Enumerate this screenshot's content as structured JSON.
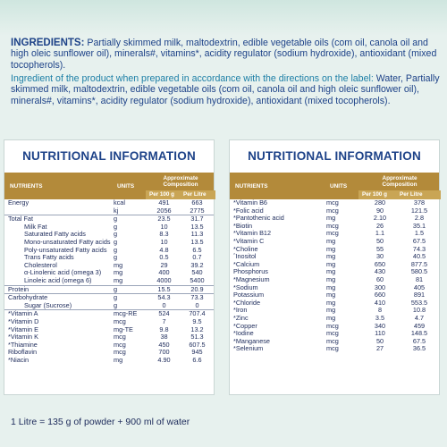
{
  "ingredients": {
    "label": "INGREDIENTS:",
    "text": "Partially skimmed milk, maltodextrin, edible vegetable oils (com oil, canola oil and high oleic sunflower oil), minerals#, vitamins*, acidity regulator (sodium hydroxide), antioxidant (mixed tocopherols).",
    "prepared_lead": "Ingredient of the product when prepared in accordance with the directions on the label:",
    "prepared_text": "Water, Partially skimmed milk, maltodextrin, edible vegetable oils (com oil, canola oil and high oleic sunflower oil), minerals#, vitamins*, acidity regulator (sodium hydroxide), antioxidant (mixed tocopherols)."
  },
  "panel_title": "NUTRITIONAL INFORMATION",
  "headers": {
    "nutrients": "NUTRIENTS",
    "units": "UNITS",
    "approx_line1": "Approximate",
    "approx_line2": "Composition",
    "per100": "Per 100 g",
    "perlitre": "Per Litre"
  },
  "left_rows": [
    {
      "name": "Energy",
      "unit": "kcal",
      "p100": "491",
      "pl": "663",
      "ind": false,
      "rule": false
    },
    {
      "name": "",
      "unit": "kj",
      "p100": "2056",
      "pl": "2775",
      "ind": false,
      "rule": false
    },
    {
      "name": "Total Fat",
      "unit": "g",
      "p100": "23.5",
      "pl": "31.7",
      "ind": false,
      "rule": true
    },
    {
      "name": "Milk Fat",
      "unit": "g",
      "p100": "10",
      "pl": "13.5",
      "ind": true,
      "rule": false
    },
    {
      "name": "Saturated Fatty acids",
      "unit": "g",
      "p100": "8.3",
      "pl": "11.3",
      "ind": true,
      "rule": false
    },
    {
      "name": "Mono-unsaturated Fatty acids",
      "unit": "g",
      "p100": "10",
      "pl": "13.5",
      "ind": true,
      "rule": false
    },
    {
      "name": "Poly-unsaturated Fatty acids",
      "unit": "g",
      "p100": "4.8",
      "pl": "6.5",
      "ind": true,
      "rule": false
    },
    {
      "name": "Trans Fatty acids",
      "unit": "g",
      "p100": "0.5",
      "pl": "0.7",
      "ind": true,
      "rule": false
    },
    {
      "name": "Cholesterol",
      "unit": "mg",
      "p100": "29",
      "pl": "39.2",
      "ind": true,
      "rule": false
    },
    {
      "name": "α-Linolenic acid (omega 3)",
      "unit": "mg",
      "p100": "400",
      "pl": "540",
      "ind": true,
      "rule": false
    },
    {
      "name": "Linoleic acid (omega 6)",
      "unit": "mg",
      "p100": "4000",
      "pl": "5400",
      "ind": true,
      "rule": false
    },
    {
      "name": "Protein",
      "unit": "g",
      "p100": "15.5",
      "pl": "20.9",
      "ind": false,
      "rule": true
    },
    {
      "name": "Carbohydrate",
      "unit": "g",
      "p100": "54.3",
      "pl": "73.3",
      "ind": false,
      "rule": true
    },
    {
      "name": "Sugar (Sucrose)",
      "unit": "g",
      "p100": "0",
      "pl": "0",
      "ind": true,
      "rule": false
    },
    {
      "name": "*Vitamin A",
      "unit": "mcg-RE",
      "p100": "524",
      "pl": "707.4",
      "ind": false,
      "rule": true
    },
    {
      "name": "*Vitamin D",
      "unit": "mcg",
      "p100": "7",
      "pl": "9.5",
      "ind": false,
      "rule": false
    },
    {
      "name": "*Vitamin E",
      "unit": "mg-TE",
      "p100": "9.8",
      "pl": "13.2",
      "ind": false,
      "rule": false
    },
    {
      "name": "*Vitamin K",
      "unit": "mcg",
      "p100": "38",
      "pl": "51.3",
      "ind": false,
      "rule": false
    },
    {
      "name": "*Thiamine",
      "unit": "mcg",
      "p100": "450",
      "pl": "607.5",
      "ind": false,
      "rule": false
    },
    {
      "name": "Riboflavin",
      "unit": "mcg",
      "p100": "700",
      "pl": "945",
      "ind": false,
      "rule": false
    },
    {
      "name": "*Niacin",
      "unit": "mg",
      "p100": "4.90",
      "pl": "6.6",
      "ind": false,
      "rule": false
    }
  ],
  "right_rows": [
    {
      "name": "*Vitamin B6",
      "unit": "mcg",
      "p100": "280",
      "pl": "378",
      "ind": false,
      "rule": false
    },
    {
      "name": "*Folic acid",
      "unit": "mcg",
      "p100": "90",
      "pl": "121.5",
      "ind": false,
      "rule": false
    },
    {
      "name": "*Pantothenic acid",
      "unit": "mg",
      "p100": "2.10",
      "pl": "2.8",
      "ind": false,
      "rule": false
    },
    {
      "name": "*Biotin",
      "unit": "mcg",
      "p100": "26",
      "pl": "35.1",
      "ind": false,
      "rule": false
    },
    {
      "name": "*Vitamin B12",
      "unit": "mcg",
      "p100": "1.1",
      "pl": "1.5",
      "ind": false,
      "rule": false
    },
    {
      "name": "*Vitamin C",
      "unit": "mg",
      "p100": "50",
      "pl": "67.5",
      "ind": false,
      "rule": false
    },
    {
      "name": "*Choline",
      "unit": "mg",
      "p100": "55",
      "pl": "74.3",
      "ind": false,
      "rule": false
    },
    {
      "name": "ˆInositol",
      "unit": "mg",
      "p100": "30",
      "pl": "40.5",
      "ind": false,
      "rule": false
    },
    {
      "name": "*Calcium",
      "unit": "mg",
      "p100": "650",
      "pl": "877.5",
      "ind": false,
      "rule": false
    },
    {
      "name": "Phosphorus",
      "unit": "mg",
      "p100": "430",
      "pl": "580.5",
      "ind": false,
      "rule": false
    },
    {
      "name": "*Magnesium",
      "unit": "mg",
      "p100": "60",
      "pl": "81",
      "ind": false,
      "rule": false
    },
    {
      "name": "*Sodium",
      "unit": "mg",
      "p100": "300",
      "pl": "405",
      "ind": false,
      "rule": false
    },
    {
      "name": "Potassium",
      "unit": "mg",
      "p100": "660",
      "pl": "891",
      "ind": false,
      "rule": false
    },
    {
      "name": "*Chloride",
      "unit": "mg",
      "p100": "410",
      "pl": "553.5",
      "ind": false,
      "rule": false
    },
    {
      "name": "*Iron",
      "unit": "mg",
      "p100": "8",
      "pl": "10.8",
      "ind": false,
      "rule": false
    },
    {
      "name": "*Zinc",
      "unit": "mg",
      "p100": "3.5",
      "pl": "4.7",
      "ind": false,
      "rule": false
    },
    {
      "name": "*Copper",
      "unit": "mcg",
      "p100": "340",
      "pl": "459",
      "ind": false,
      "rule": false
    },
    {
      "name": "*Iodine",
      "unit": "mcg",
      "p100": "110",
      "pl": "148.5",
      "ind": false,
      "rule": false
    },
    {
      "name": "*Manganese",
      "unit": "mcg",
      "p100": "50",
      "pl": "67.5",
      "ind": false,
      "rule": false
    },
    {
      "name": "*Selenium",
      "unit": "mcg",
      "p100": "27",
      "pl": "36.5",
      "ind": false,
      "rule": false
    }
  ],
  "footer": "1 Litre = 135 g of  powder + 900 ml of water"
}
